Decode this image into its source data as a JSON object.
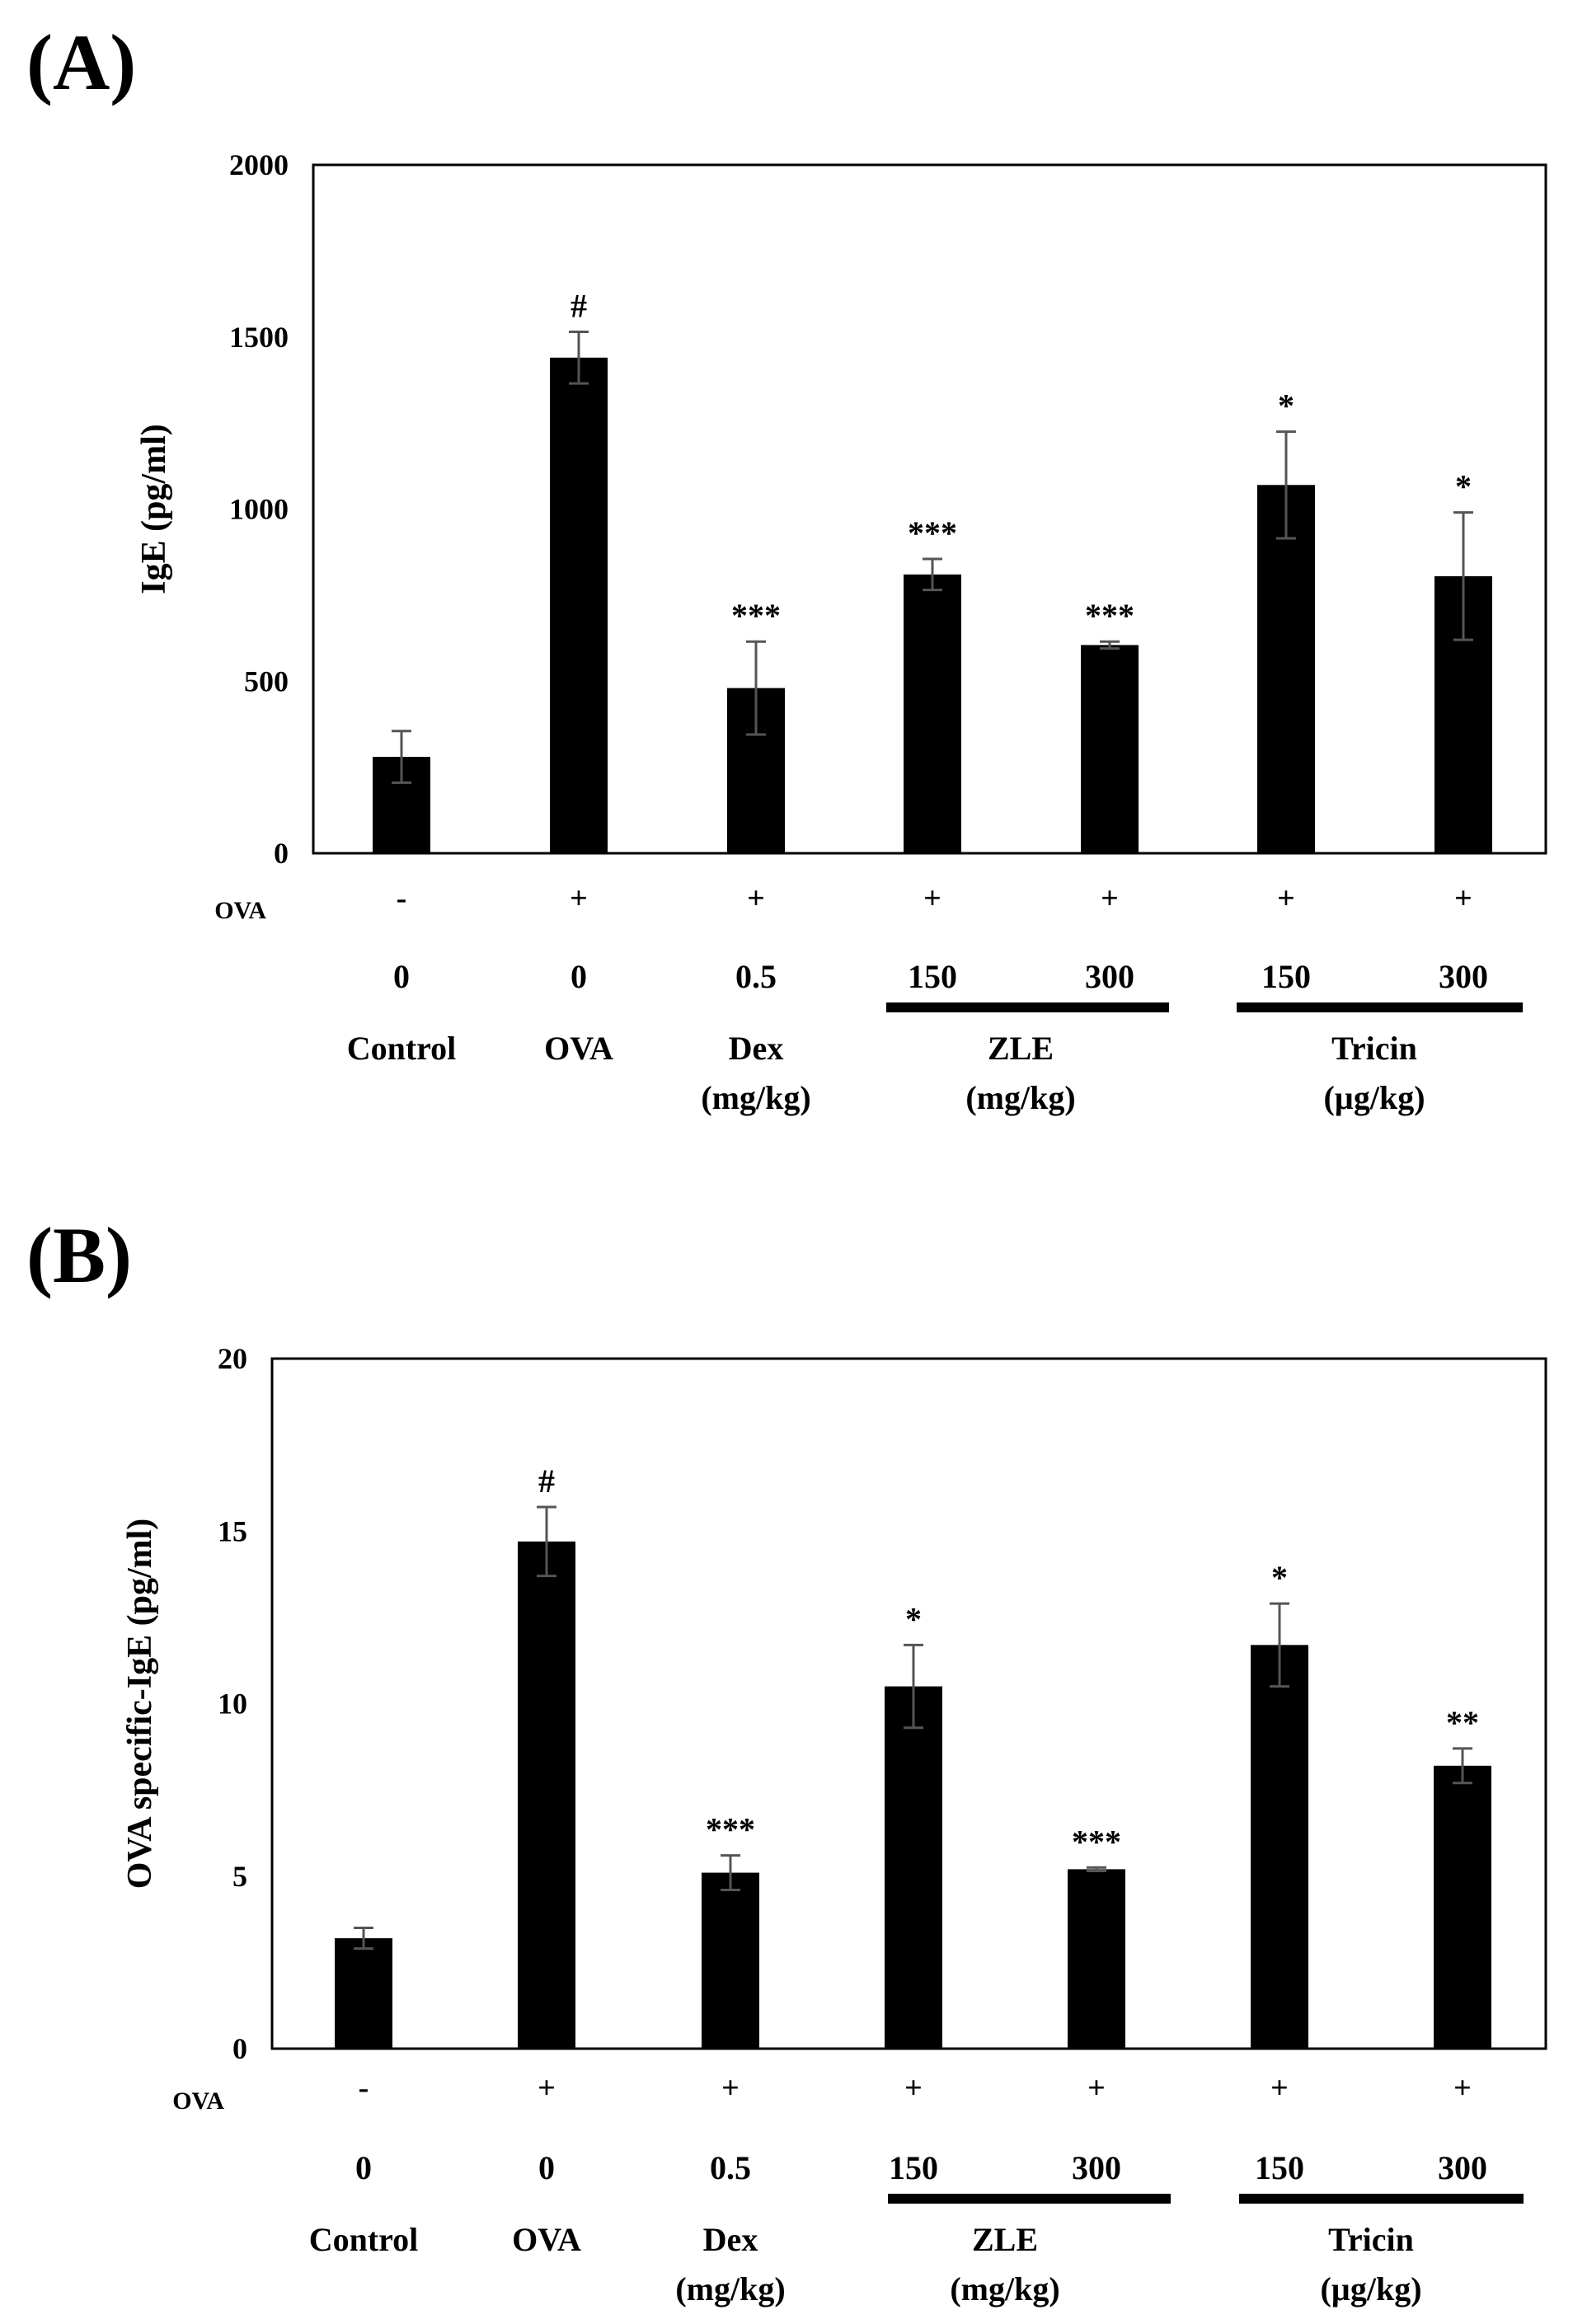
{
  "chart_data": [
    {
      "type": "bar",
      "panel_label": "(A)",
      "ylabel": "IgE (pg/ml)",
      "ylim": [
        0,
        2000
      ],
      "yticks": [
        "0",
        "500",
        "1000",
        "1500",
        "2000"
      ],
      "ytick_values": [
        0,
        500,
        1000,
        1500,
        2000
      ],
      "ova_label": "OVA",
      "ova_signs": [
        "-",
        "+",
        "+",
        "+",
        "+",
        "+",
        "+"
      ],
      "doses": [
        "0",
        "0",
        "0.5",
        "150",
        "300",
        "150",
        "300"
      ],
      "values": [
        280,
        1440,
        480,
        810,
        605,
        1070,
        805
      ],
      "errors": [
        75,
        75,
        135,
        45,
        10,
        155,
        185
      ],
      "significance": [
        "",
        "#",
        "***",
        "***",
        "***",
        "*",
        "*"
      ],
      "groups": [
        {
          "line1": "Control",
          "line2": ""
        },
        {
          "line1": "OVA",
          "line2": ""
        },
        {
          "line1": "Dex",
          "line2": "(mg/kg)"
        },
        {
          "line1": "ZLE",
          "line2": "(mg/kg)"
        },
        {
          "line1": "Tricin",
          "line2": "(µg/kg)"
        }
      ]
    },
    {
      "type": "bar",
      "panel_label": "(B)",
      "ylabel": "OVA specific-IgE (pg/ml)",
      "ylim": [
        0,
        20
      ],
      "yticks": [
        "0",
        "5",
        "10",
        "15",
        "20"
      ],
      "ytick_values": [
        0,
        5,
        10,
        15,
        20
      ],
      "ova_label": "OVA",
      "ova_signs": [
        "-",
        "+",
        "+",
        "+",
        "+",
        "+",
        "+"
      ],
      "doses": [
        "0",
        "0",
        "0.5",
        "150",
        "300",
        "150",
        "300"
      ],
      "values": [
        3.2,
        14.7,
        5.1,
        10.5,
        5.2,
        11.7,
        8.2
      ],
      "errors": [
        0.3,
        1.0,
        0.5,
        1.2,
        0.05,
        1.2,
        0.5
      ],
      "significance": [
        "",
        "#",
        "***",
        "*",
        "***",
        "*",
        "**"
      ],
      "groups": [
        {
          "line1": "Control",
          "line2": ""
        },
        {
          "line1": "OVA",
          "line2": ""
        },
        {
          "line1": "Dex",
          "line2": "(mg/kg)"
        },
        {
          "line1": "ZLE",
          "line2": "(mg/kg)"
        },
        {
          "line1": "Tricin",
          "line2": "(µg/kg)"
        }
      ]
    }
  ]
}
